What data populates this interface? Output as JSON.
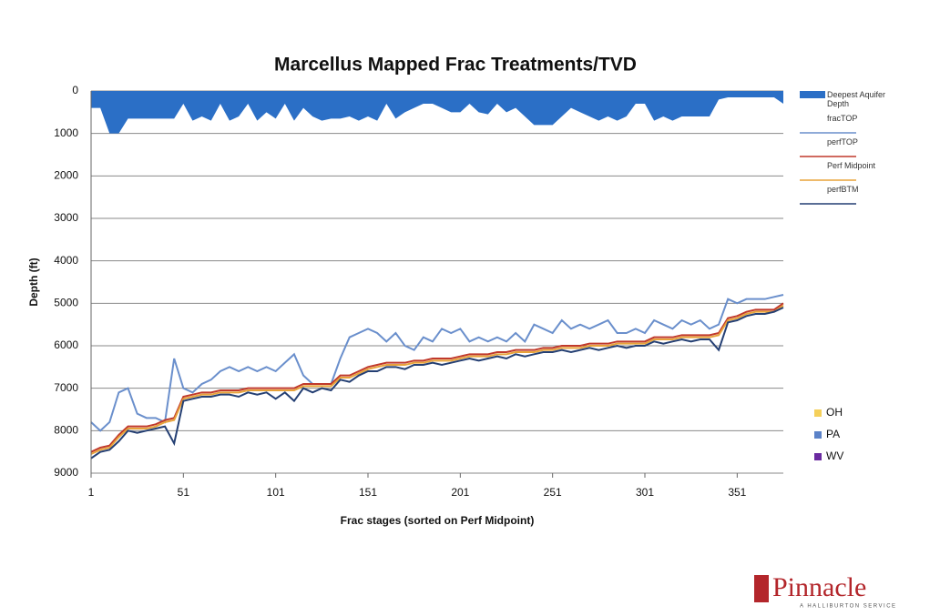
{
  "chart_data": {
    "type": "line",
    "title": "Marcellus Mapped Frac Treatments/TVD",
    "x_label": "Frac stages (sorted on Perf Midpoint)",
    "y_label": "Depth (ft)",
    "xlim": [
      1,
      376
    ],
    "xticks": [
      1,
      51,
      101,
      151,
      201,
      251,
      301,
      351
    ],
    "ylim": [
      0,
      9000
    ],
    "yticks": [
      0,
      1000,
      2000,
      3000,
      4000,
      5000,
      6000,
      7000,
      8000,
      9000
    ],
    "y_inverted": true,
    "grid": true,
    "x": [
      1,
      6,
      11,
      16,
      21,
      26,
      31,
      36,
      41,
      46,
      51,
      56,
      61,
      66,
      71,
      76,
      81,
      86,
      91,
      96,
      101,
      106,
      111,
      116,
      121,
      126,
      131,
      136,
      141,
      146,
      151,
      156,
      161,
      166,
      171,
      176,
      181,
      186,
      191,
      196,
      201,
      206,
      211,
      216,
      221,
      226,
      231,
      236,
      241,
      246,
      251,
      256,
      261,
      266,
      271,
      276,
      281,
      286,
      291,
      296,
      301,
      306,
      311,
      316,
      321,
      326,
      331,
      336,
      341,
      346,
      351,
      356,
      361,
      366,
      371,
      376
    ],
    "series": [
      {
        "name": "Deepest Aquifer Depth",
        "kind": "area",
        "color": "#2b6fc6",
        "values": [
          400,
          400,
          1000,
          1000,
          650,
          650,
          650,
          650,
          650,
          650,
          300,
          700,
          600,
          700,
          300,
          700,
          600,
          300,
          700,
          500,
          650,
          300,
          700,
          400,
          600,
          700,
          650,
          650,
          600,
          700,
          600,
          700,
          300,
          650,
          500,
          400,
          300,
          300,
          400,
          500,
          500,
          300,
          500,
          550,
          300,
          500,
          400,
          600,
          800,
          800,
          800,
          600,
          400,
          500,
          600,
          700,
          600,
          700,
          600,
          300,
          300,
          700,
          600,
          700,
          600,
          600,
          600,
          600,
          200,
          150,
          150,
          150,
          150,
          150,
          150,
          300
        ]
      },
      {
        "name": "fracTOP",
        "kind": "line",
        "color": "#6a8fcc",
        "values": [
          7800,
          8000,
          7800,
          7100,
          7000,
          7600,
          7700,
          7700,
          7800,
          6300,
          7000,
          7100,
          6900,
          6800,
          6600,
          6500,
          6600,
          6500,
          6600,
          6500,
          6600,
          6400,
          6200,
          6700,
          6900,
          6900,
          6900,
          6300,
          5800,
          5700,
          5600,
          5700,
          5900,
          5700,
          6000,
          6100,
          5800,
          5900,
          5600,
          5700,
          5600,
          5900,
          5800,
          5900,
          5800,
          5900,
          5700,
          5900,
          5500,
          5600,
          5700,
          5400,
          5600,
          5500,
          5600,
          5500,
          5400,
          5700,
          5700,
          5600,
          5700,
          5400,
          5500,
          5600,
          5400,
          5500,
          5400,
          5600,
          5500,
          4900,
          5000,
          4900,
          4900,
          4900,
          4850,
          4800
        ]
      },
      {
        "name": "perfTOP",
        "kind": "line",
        "color": "#c0392b",
        "values": [
          8500,
          8400,
          8350,
          8100,
          7900,
          7900,
          7900,
          7850,
          7750,
          7700,
          7200,
          7150,
          7100,
          7100,
          7050,
          7050,
          7050,
          7000,
          7000,
          7000,
          7000,
          7000,
          7000,
          6900,
          6900,
          6900,
          6900,
          6700,
          6700,
          6600,
          6500,
          6450,
          6400,
          6400,
          6400,
          6350,
          6350,
          6300,
          6300,
          6300,
          6250,
          6200,
          6200,
          6200,
          6150,
          6150,
          6100,
          6100,
          6100,
          6050,
          6050,
          6000,
          6000,
          6000,
          5950,
          5950,
          5950,
          5900,
          5900,
          5900,
          5900,
          5800,
          5800,
          5800,
          5750,
          5750,
          5750,
          5750,
          5700,
          5350,
          5300,
          5200,
          5150,
          5150,
          5150,
          5000
        ]
      },
      {
        "name": "Perf Midpoint",
        "kind": "line",
        "color": "#e8a33a",
        "values": [
          8550,
          8450,
          8400,
          8150,
          7950,
          7950,
          7950,
          7900,
          7800,
          7750,
          7250,
          7200,
          7150,
          7150,
          7100,
          7100,
          7100,
          7050,
          7050,
          7050,
          7050,
          7050,
          7050,
          6950,
          6950,
          6950,
          6950,
          6750,
          6750,
          6650,
          6550,
          6500,
          6450,
          6450,
          6450,
          6400,
          6400,
          6350,
          6350,
          6350,
          6300,
          6250,
          6250,
          6250,
          6200,
          6200,
          6150,
          6150,
          6150,
          6100,
          6100,
          6050,
          6050,
          6050,
          6000,
          6000,
          6000,
          5950,
          5950,
          5950,
          5950,
          5850,
          5850,
          5850,
          5800,
          5800,
          5800,
          5800,
          5750,
          5400,
          5350,
          5250,
          5200,
          5200,
          5200,
          5050
        ]
      },
      {
        "name": "perfBTM",
        "kind": "line",
        "color": "#243f73",
        "values": [
          8650,
          8500,
          8450,
          8250,
          8000,
          8050,
          8000,
          7950,
          7900,
          8300,
          7300,
          7250,
          7200,
          7200,
          7150,
          7150,
          7200,
          7100,
          7150,
          7100,
          7250,
          7100,
          7300,
          7000,
          7100,
          7000,
          7050,
          6800,
          6850,
          6700,
          6600,
          6600,
          6500,
          6500,
          6550,
          6450,
          6450,
          6400,
          6450,
          6400,
          6350,
          6300,
          6350,
          6300,
          6250,
          6300,
          6200,
          6250,
          6200,
          6150,
          6150,
          6100,
          6150,
          6100,
          6050,
          6100,
          6050,
          6000,
          6050,
          6000,
          6000,
          5900,
          5950,
          5900,
          5850,
          5900,
          5850,
          5850,
          6100,
          5450,
          5400,
          5300,
          5250,
          5250,
          5200,
          5100
        ]
      }
    ],
    "state_legend": [
      {
        "name": "OH",
        "color": "#f5d05a"
      },
      {
        "name": "PA",
        "color": "#5b82c8"
      },
      {
        "name": "WV",
        "color": "#6a2aa0"
      }
    ]
  },
  "logo": {
    "name": "Pinnacle",
    "tagline": "A HALLIBURTON SERVICE"
  }
}
